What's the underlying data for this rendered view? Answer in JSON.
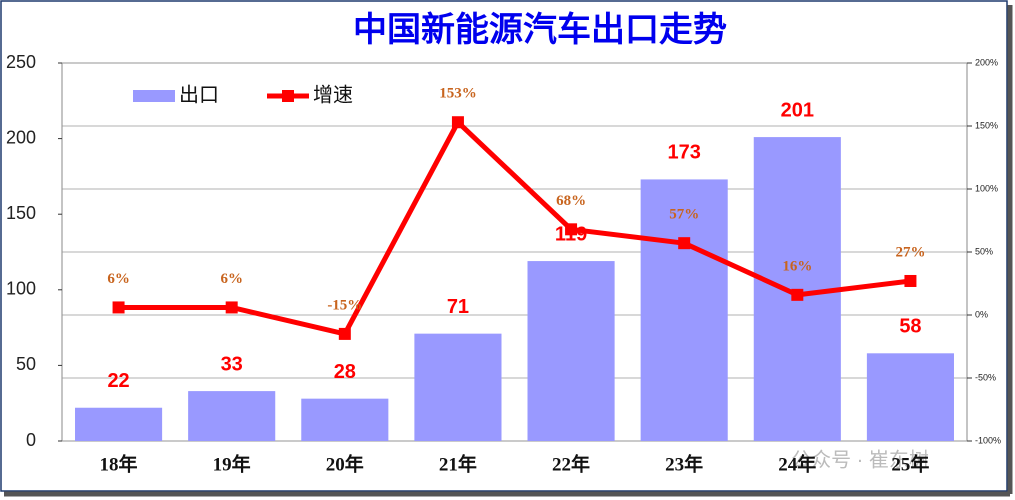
{
  "chart_data": {
    "type": "bar",
    "title": "中国新能源汽车出口走势",
    "categories": [
      "18年",
      "19年",
      "20年",
      "21年",
      "22年",
      "23年",
      "24年",
      "25年"
    ],
    "series": [
      {
        "name": "出口",
        "type": "bar",
        "color": "#9999ff",
        "values": [
          22,
          33,
          28,
          71,
          119,
          173,
          201,
          58
        ]
      },
      {
        "name": "增速",
        "type": "line",
        "axis": "y2",
        "color": "#ff0000",
        "values": [
          6,
          6,
          -15,
          153,
          68,
          57,
          16,
          27
        ],
        "value_labels": [
          "6%",
          "6%",
          "-15%",
          "153%",
          "68%",
          "57%",
          "16%",
          "27%"
        ]
      }
    ],
    "ylim": [
      0,
      250
    ],
    "yticks": [
      0,
      50,
      100,
      150,
      200,
      250
    ],
    "y2lim": [
      -100,
      200
    ],
    "y2ticks": [
      {
        "value": -100,
        "label": "-100%"
      },
      {
        "value": -50,
        "label": "-50%"
      },
      {
        "value": 0,
        "label": "0%"
      },
      {
        "value": 50,
        "label": "50%"
      },
      {
        "value": 100,
        "label": "100%"
      },
      {
        "value": 150,
        "label": "150%"
      },
      {
        "value": 200,
        "label": "200%"
      }
    ],
    "grid": true,
    "legend": "top-left",
    "annotation": "公众号 · 崔东树"
  }
}
